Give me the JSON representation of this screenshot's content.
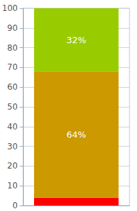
{
  "chart_data": {
    "type": "bar",
    "stacked": true,
    "categories": [
      null
    ],
    "series": [
      {
        "color": "#ff0000",
        "values": [
          4
        ]
      },
      {
        "color": "#cc9900",
        "values": [
          64
        ],
        "value_labels": [
          "64%"
        ]
      },
      {
        "color": "#99cc00",
        "values": [
          32
        ],
        "value_labels": [
          "32%"
        ]
      }
    ],
    "ylim": [
      0,
      100
    ],
    "yticks": [
      0,
      10,
      20,
      30,
      40,
      50,
      60,
      70,
      80,
      90,
      100
    ],
    "grid": true,
    "data_labels": true,
    "tick_labels": "y"
  }
}
